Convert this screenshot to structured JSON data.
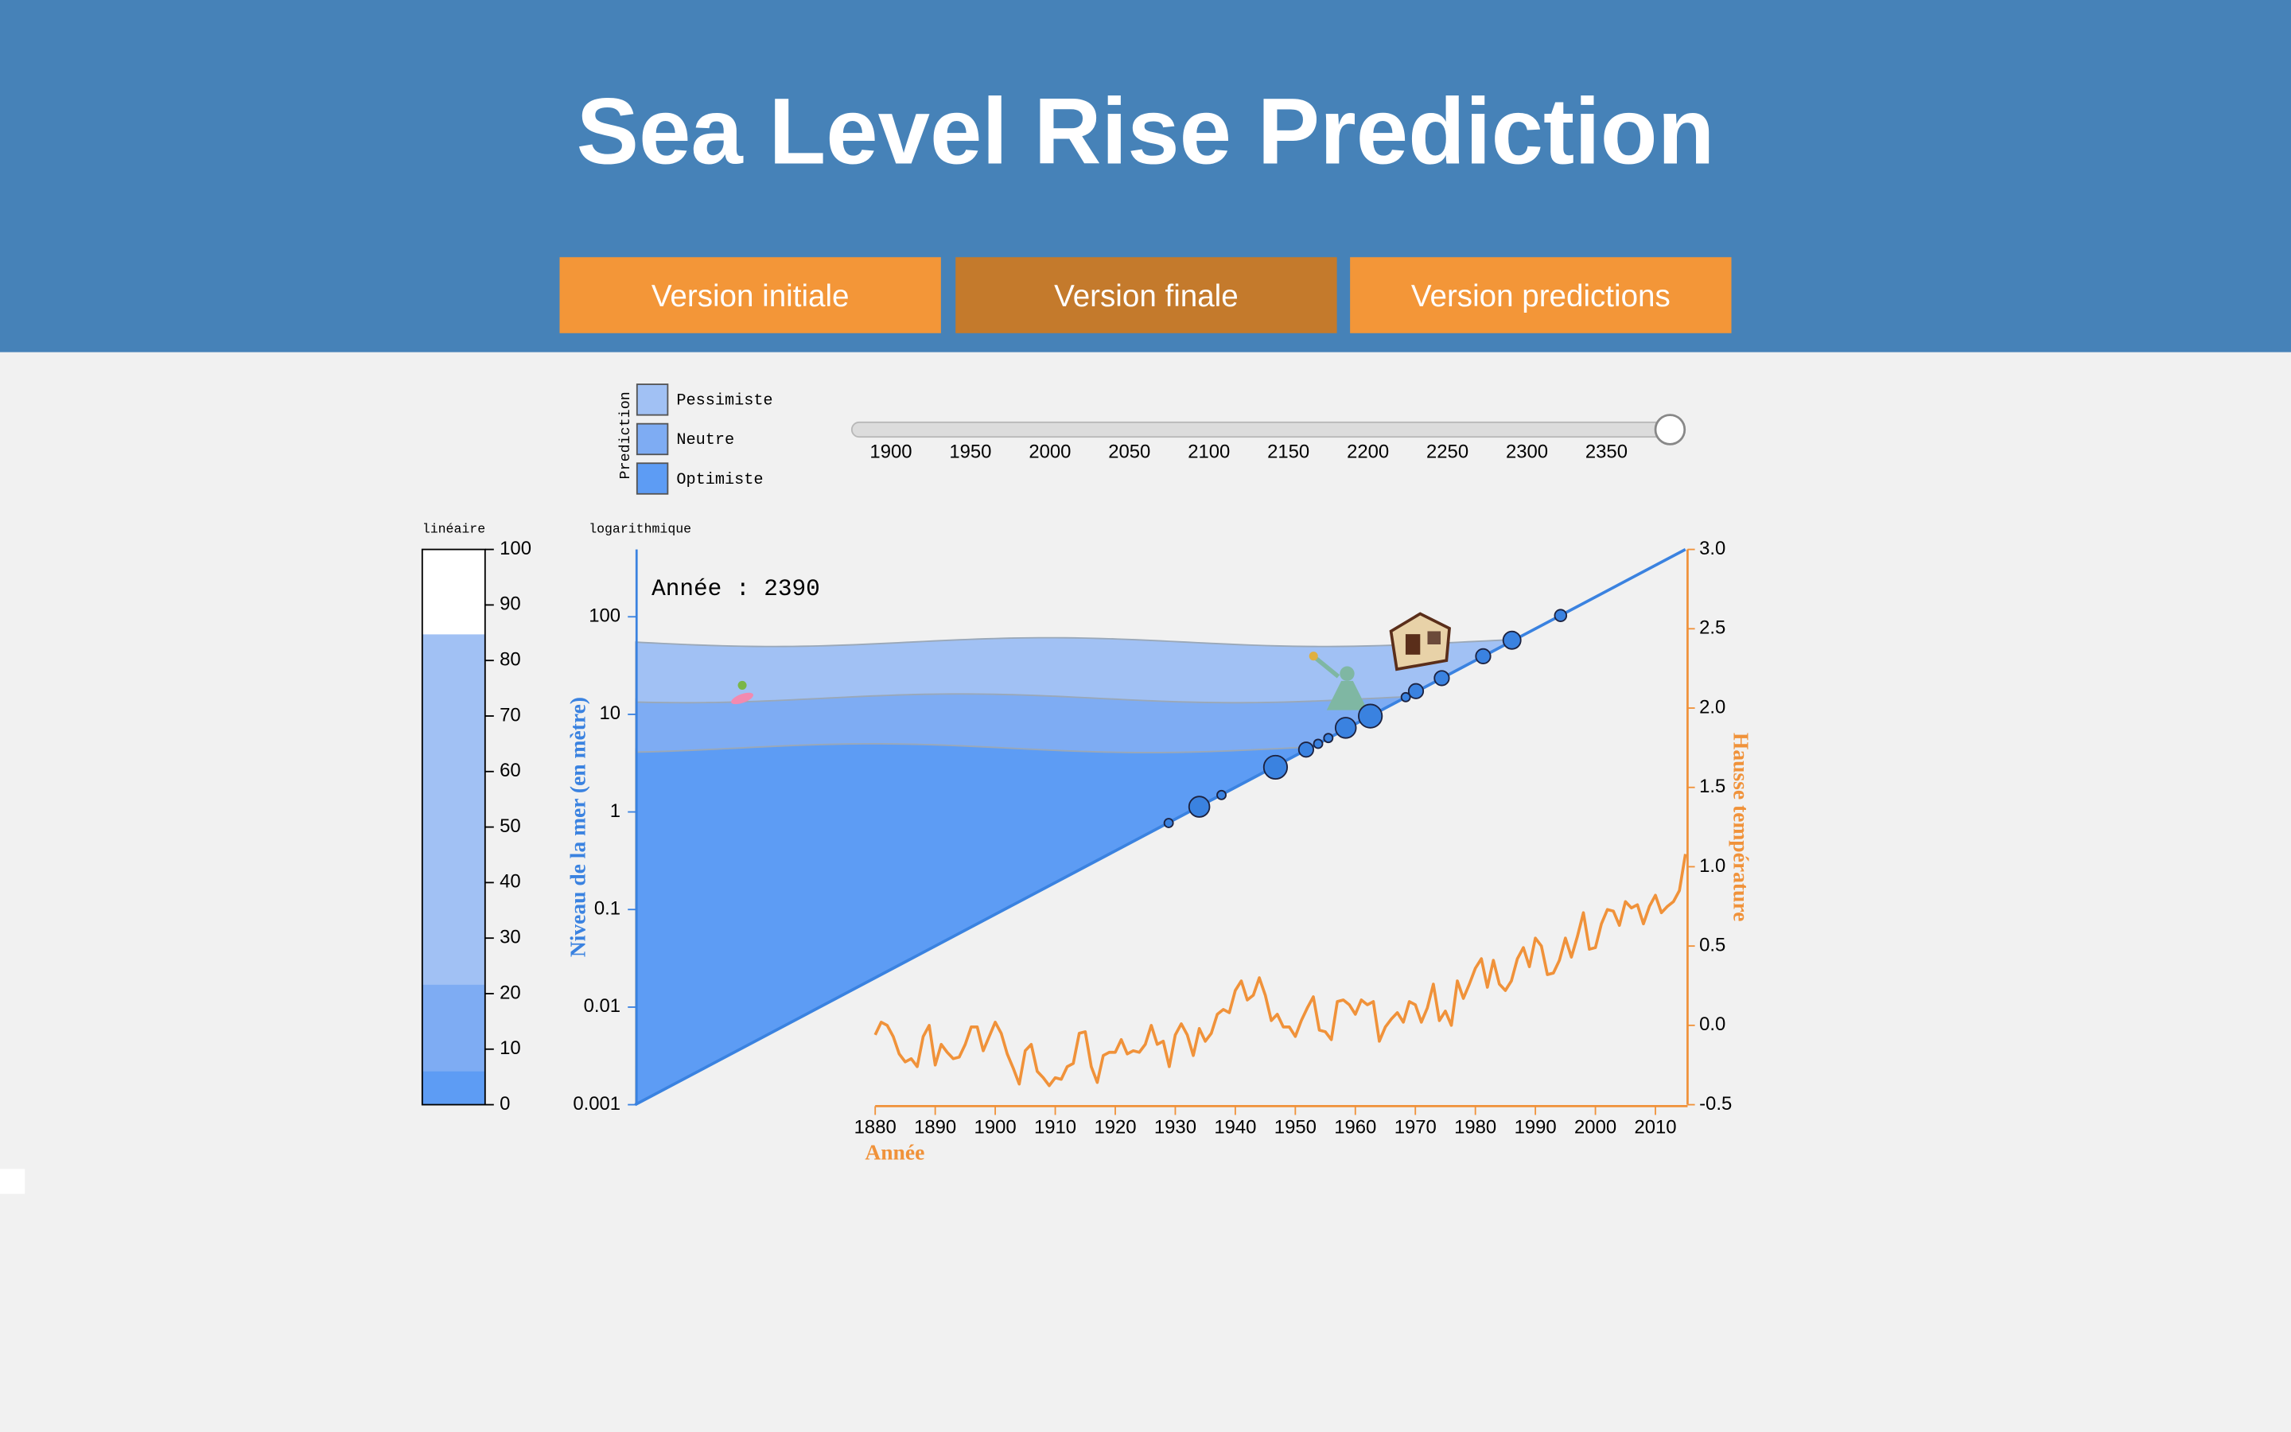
{
  "header": {
    "title": "Sea Level Rise Prediction"
  },
  "buttons": [
    {
      "label": "Version initiale"
    },
    {
      "label": "Version finale",
      "active": true
    },
    {
      "label": "Version predictions"
    }
  ],
  "legend": {
    "title": "Prediction",
    "items": [
      {
        "name": "Pessimiste",
        "color": "#a1c1f4"
      },
      {
        "name": "Neutre",
        "color": "#7eacf3"
      },
      {
        "name": "Optimiste",
        "color": "#5d9cf4"
      }
    ]
  },
  "slider": {
    "value": 2390,
    "lim": [
      1880,
      2390
    ],
    "ticks": [
      1900,
      1950,
      2000,
      2050,
      2100,
      2150,
      2200,
      2250,
      2300,
      2350
    ]
  },
  "chart_data": [
    {
      "type": "bar",
      "title": "linéaire",
      "values": [
        84.7,
        21.6,
        6
      ],
      "ylim": [
        0,
        100
      ],
      "yticks": [
        0,
        10,
        20,
        30,
        40,
        50,
        60,
        70,
        80,
        90,
        100
      ]
    },
    {
      "type": "scatter",
      "title": "logarithmique",
      "annotation": "Année : 2390",
      "ylabel": "Niveau de la mer (en mètre)",
      "xlabel": "Année",
      "y2label": "Hausse température",
      "log_y": true,
      "ylim": [
        0.001,
        490
      ],
      "yticks": [
        0.001,
        0.01,
        0.1,
        1,
        10,
        100
      ],
      "xlim": [
        1840,
        2015
      ],
      "xticks": [
        1880,
        1890,
        1900,
        1910,
        1920,
        1930,
        1940,
        1950,
        1960,
        1970,
        1980,
        1990,
        2000,
        2010
      ],
      "y2lim": [
        -0.5,
        3
      ],
      "y2ticks": [
        -0.5,
        {
          "value": 0,
          "label": "0.0"
        },
        0.5,
        {
          "value": 1,
          "label": "1.0"
        },
        1.5,
        {
          "value": 2,
          "label": "2.0"
        },
        2.5,
        {
          "value": 3,
          "label": "3.0"
        }
      ],
      "water_levels": [
        55,
        14.6,
        4.5
      ],
      "trend": {
        "x": [
          1840,
          2015
        ],
        "values": [
          0.001,
          490
        ],
        "color": "#3a82e0"
      },
      "points": {
        "x": [
          1928.9,
          1934,
          1937.7,
          1946.7,
          1951.8,
          1953.8,
          1955.5,
          1958.4,
          1962.5,
          1968.4,
          1970.1,
          1974.4,
          1981.3,
          1986.1,
          1994.2
        ],
        "values": [
          0.77,
          1.13,
          1.49,
          2.87,
          4.35,
          4.99,
          5.72,
          7.28,
          9.6,
          15,
          17.3,
          23.5,
          39.4,
          57.5,
          103
        ],
        "sizes": [
          3,
          7,
          3,
          8,
          5,
          3,
          3,
          7,
          8,
          3,
          5,
          5,
          5,
          6,
          4
        ],
        "color": "#3a82e0"
      },
      "series": [
        {
          "color": "#f0923a",
          "axis": "y2",
          "x": [
            1880,
            1881,
            1882,
            1883,
            1884,
            1885,
            1886,
            1887,
            1888,
            1889,
            1890,
            1891,
            1892,
            1893,
            1894,
            1895,
            1896,
            1897,
            1898,
            1899,
            1900,
            1901,
            1902,
            1903,
            1904,
            1905,
            1906,
            1907,
            1908,
            1909,
            1910,
            1911,
            1912,
            1913,
            1914,
            1915,
            1916,
            1917,
            1918,
            1919,
            1920,
            1921,
            1922,
            1923,
            1924,
            1925,
            1926,
            1927,
            1928,
            1929,
            1930,
            1931,
            1932,
            1933,
            1934,
            1935,
            1936,
            1937,
            1938,
            1939,
            1940,
            1941,
            1942,
            1943,
            1944,
            1945,
            1946,
            1947,
            1948,
            1949,
            1950,
            1951,
            1952,
            1953,
            1954,
            1955,
            1956,
            1957,
            1958,
            1959,
            1960,
            1961,
            1962,
            1963,
            1964,
            1965,
            1966,
            1967,
            1968,
            1969,
            1970,
            1971,
            1972,
            1973,
            1974,
            1975,
            1976,
            1977,
            1978,
            1979,
            1980,
            1981,
            1982,
            1983,
            1984,
            1985,
            1986,
            1987,
            1988,
            1989,
            1990,
            1991,
            1992,
            1993,
            1994,
            1995,
            1996,
            1997,
            1998,
            1999,
            2000,
            2001,
            2002,
            2003,
            2004,
            2005,
            2006,
            2007,
            2008,
            2009,
            2010,
            2011,
            2012,
            2013,
            2014,
            2015
          ],
          "values": [
            -0.06,
            0.02,
            0,
            -0.07,
            -0.18,
            -0.23,
            -0.21,
            -0.26,
            -0.07,
            0,
            -0.25,
            -0.12,
            -0.17,
            -0.21,
            -0.2,
            -0.12,
            -0.01,
            -0.01,
            -0.16,
            -0.07,
            0.02,
            -0.05,
            -0.18,
            -0.27,
            -0.37,
            -0.16,
            -0.12,
            -0.29,
            -0.33,
            -0.38,
            -0.33,
            -0.34,
            -0.26,
            -0.24,
            -0.05,
            -0.04,
            -0.26,
            -0.36,
            -0.19,
            -0.17,
            -0.17,
            -0.09,
            -0.18,
            -0.16,
            -0.17,
            -0.12,
            0,
            -0.12,
            -0.1,
            -0.26,
            -0.06,
            0.01,
            -0.06,
            -0.19,
            -0.02,
            -0.1,
            -0.05,
            0.07,
            0.1,
            0.08,
            0.22,
            0.28,
            0.16,
            0.19,
            0.3,
            0.19,
            0.03,
            0.07,
            -0.01,
            -0.01,
            -0.07,
            0.03,
            0.11,
            0.18,
            -0.03,
            -0.04,
            -0.09,
            0.15,
            0.16,
            0.13,
            0.07,
            0.16,
            0.13,
            0.15,
            -0.1,
            -0.01,
            0.04,
            0.08,
            0.02,
            0.15,
            0.13,
            0.02,
            0.11,
            0.26,
            0.03,
            0.09,
            0,
            0.28,
            0.17,
            0.26,
            0.36,
            0.42,
            0.24,
            0.41,
            0.26,
            0.22,
            0.28,
            0.42,
            0.49,
            0.37,
            0.55,
            0.5,
            0.32,
            0.33,
            0.41,
            0.55,
            0.43,
            0.56,
            0.71,
            0.48,
            0.49,
            0.64,
            0.73,
            0.72,
            0.63,
            0.78,
            0.74,
            0.76,
            0.64,
            0.75,
            0.82,
            0.71,
            0.75,
            0.78,
            0.85,
            1.08
          ]
        }
      ]
    }
  ]
}
